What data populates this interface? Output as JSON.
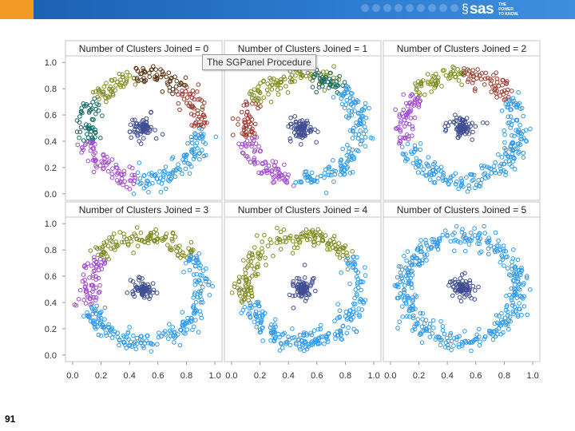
{
  "header": {
    "brand": "sas",
    "tagline": "THE POWER TO KNOW.",
    "brand_swirl": "§",
    "colors": {
      "bar": "#2b79cf",
      "accent": "#f39a24"
    }
  },
  "tooltip": "The SGPanel Procedure",
  "slide_number": "91",
  "chart_data": {
    "type": "scatter",
    "title": "",
    "xlabel": "",
    "ylabel": "",
    "xlim": [
      -0.05,
      1.05
    ],
    "ylim": [
      -0.05,
      1.05
    ],
    "x_ticks": [
      "0.0",
      "0.2",
      "0.4",
      "0.6",
      "0.8",
      "1.0"
    ],
    "y_ticks": [
      "0.0",
      "0.2",
      "0.4",
      "0.6",
      "0.8",
      "1.0"
    ],
    "grid": false,
    "marker": "open-circle",
    "cluster_colors": {
      "blue": "#2f9af2",
      "olive": "#7f8c1f",
      "purple": "#a349d4",
      "teal": "#0f6b67",
      "red": "#a03a2e",
      "brown": "#5a3410",
      "navy": "#414e94"
    },
    "panels": [
      {
        "label": "Number of Clusters Joined = 0",
        "ring_arcs": [
          {
            "cluster": "olive",
            "from_deg": 100,
            "to_deg": 145
          },
          {
            "cluster": "teal",
            "from_deg": 145,
            "to_deg": 195
          },
          {
            "cluster": "purple",
            "from_deg": 195,
            "to_deg": 262
          },
          {
            "cluster": "blue",
            "from_deg": 262,
            "to_deg": 360
          },
          {
            "cluster": "red",
            "from_deg": 0,
            "to_deg": 48
          },
          {
            "cluster": "brown",
            "from_deg": 48,
            "to_deg": 100
          }
        ],
        "center_cluster": "navy"
      },
      {
        "label": "Number of Clusters Joined = 1",
        "ring_arcs": [
          {
            "cluster": "olive",
            "from_deg": 55,
            "to_deg": 150
          },
          {
            "cluster": "red",
            "from_deg": 150,
            "to_deg": 192
          },
          {
            "cluster": "purple",
            "from_deg": 192,
            "to_deg": 262
          },
          {
            "cluster": "blue",
            "from_deg": 262,
            "to_deg": 408
          },
          {
            "cluster": "teal",
            "from_deg": 48,
            "to_deg": 80
          }
        ],
        "center_cluster": "navy"
      },
      {
        "label": "Number of Clusters Joined = 2",
        "ring_arcs": [
          {
            "cluster": "olive",
            "from_deg": 88,
            "to_deg": 142
          },
          {
            "cluster": "purple",
            "from_deg": 142,
            "to_deg": 197
          },
          {
            "cluster": "blue",
            "from_deg": 197,
            "to_deg": 395
          },
          {
            "cluster": "red",
            "from_deg": 35,
            "to_deg": 88
          }
        ],
        "center_cluster": "navy"
      },
      {
        "label": "Number of Clusters Joined = 3",
        "ring_arcs": [
          {
            "cluster": "olive",
            "from_deg": 38,
            "to_deg": 142
          },
          {
            "cluster": "purple",
            "from_deg": 142,
            "to_deg": 200
          },
          {
            "cluster": "blue",
            "from_deg": 200,
            "to_deg": 398
          }
        ],
        "center_cluster": "navy"
      },
      {
        "label": "Number of Clusters Joined = 4",
        "ring_arcs": [
          {
            "cluster": "olive",
            "from_deg": 38,
            "to_deg": 195
          },
          {
            "cluster": "blue",
            "from_deg": 195,
            "to_deg": 398
          }
        ],
        "center_cluster": "navy"
      },
      {
        "label": "Number of Clusters Joined = 5",
        "ring_arcs": [
          {
            "cluster": "blue",
            "from_deg": 0,
            "to_deg": 360
          }
        ],
        "center_cluster": "navy"
      }
    ],
    "ring": {
      "center_x": 0.5,
      "center_y": 0.5,
      "radius": 0.4,
      "spread": 0.07
    },
    "center_blob": {
      "center_x": 0.5,
      "center_y": 0.5,
      "radius": 0.1
    }
  }
}
